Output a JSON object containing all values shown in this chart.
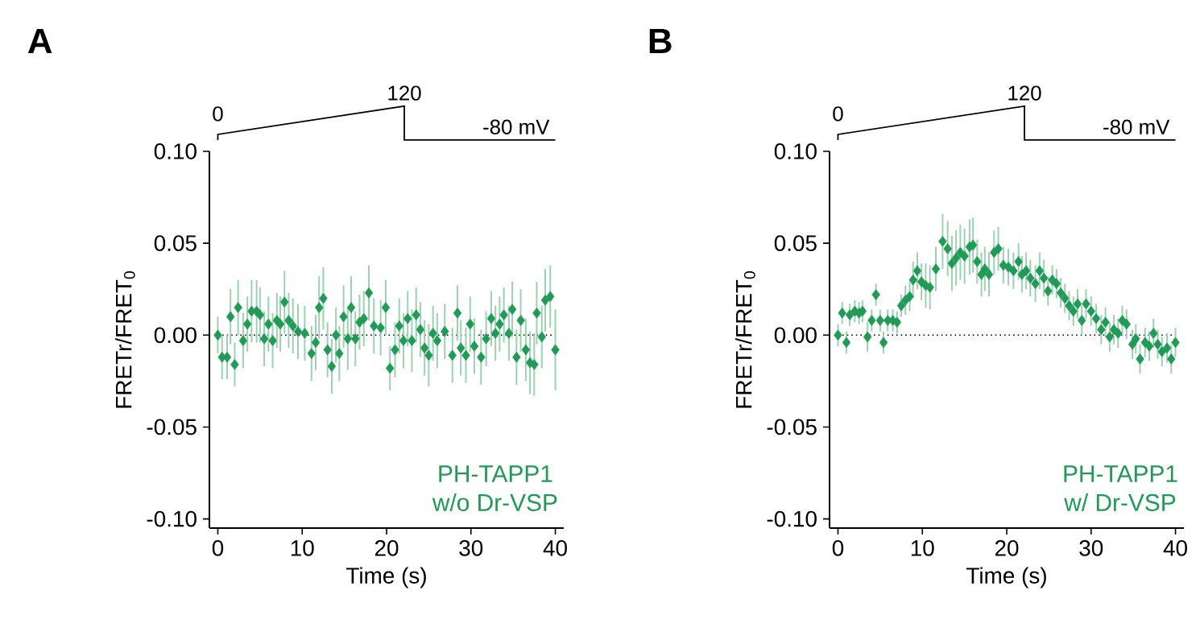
{
  "chart_data": [
    {
      "type": "scatter",
      "title": "A",
      "xlabel": "Time (s)",
      "ylabel": "FRETr/FRET$_{0}$",
      "color": "#1f9b55",
      "marker": "diamond",
      "xlim": [
        -1,
        41
      ],
      "ylim": [
        -0.105,
        0.1
      ],
      "xticks": [
        0,
        10,
        20,
        30,
        40
      ],
      "yticks": [
        {
          "value": -0.1,
          "label": "-0.10"
        },
        {
          "value": -0.05,
          "label": "-0.05"
        },
        {
          "value": 0,
          "label": "0.00"
        },
        {
          "value": 0.05,
          "label": "0.05"
        },
        {
          "value": 0.1,
          "label": "0.10"
        }
      ],
      "ref_lines": [
        {
          "axis": "y",
          "value": 0,
          "line_style": "dotted",
          "color": "#000000"
        }
      ],
      "annotations": [
        "0",
        "120",
        "-80 mV",
        "PH-TAPP1",
        "w/o Dr-VSP"
      ],
      "x": [
        0,
        0.5,
        1.1,
        1.5,
        2.0,
        2.4,
        3.0,
        3.5,
        4.0,
        4.6,
        5.0,
        5.5,
        6.0,
        6.5,
        7.0,
        7.4,
        7.9,
        8.4,
        8.9,
        9.5,
        10.3,
        11.1,
        11.6,
        12.0,
        12.5,
        13.0,
        13.5,
        14.0,
        14.4,
        14.9,
        15.4,
        15.8,
        16.3,
        16.8,
        17.3,
        17.9,
        18.5,
        19.3,
        19.9,
        20.4,
        21.0,
        21.5,
        22.0,
        22.5,
        23.0,
        23.5,
        24.0,
        24.5,
        25.0,
        25.5,
        26.0,
        26.9,
        27.8,
        28.4,
        28.8,
        29.4,
        29.9,
        30.4,
        31.2,
        31.8,
        32.4,
        32.9,
        33.4,
        33.9,
        34.5,
        34.9,
        35.4,
        35.9,
        36.5,
        37.0,
        37.5,
        37.8,
        38.4,
        38.8,
        39.4,
        40.0
      ],
      "values": [
        0,
        -0.012,
        -0.012,
        0.01,
        -0.016,
        0.015,
        -0.003,
        0.006,
        0.013,
        0.013,
        0.011,
        -0.002,
        0.006,
        -0.003,
        0.008,
        0.006,
        0.018,
        0.008,
        0.005,
        0.002,
        0.001,
        -0.01,
        -0.004,
        0.015,
        0.02,
        -0.008,
        -0.017,
        0.0,
        -0.01,
        0.01,
        -0.002,
        0.015,
        -0.002,
        0.007,
        0.009,
        0.023,
        0.005,
        0.004,
        0.015,
        -0.018,
        -0.008,
        0.005,
        -0.003,
        0.009,
        -0.003,
        0.011,
        0.003,
        -0.007,
        -0.011,
        0.001,
        -0.003,
        0.002,
        -0.011,
        0.012,
        -0.007,
        -0.011,
        0.006,
        -0.006,
        -0.012,
        -0.002,
        0.009,
        0.001,
        0.006,
        0.011,
        0.001,
        0.014,
        -0.012,
        0.008,
        -0.008,
        -0.015,
        -0.016,
        0.012,
        -0.001,
        0.019,
        0.021,
        -0.008
      ],
      "errors": [
        0.01,
        0.012,
        0.012,
        0.015,
        0.012,
        0.015,
        0.015,
        0.015,
        0.017,
        0.017,
        0.015,
        0.015,
        0.015,
        0.015,
        0.015,
        0.015,
        0.017,
        0.015,
        0.015,
        0.015,
        0.015,
        0.015,
        0.015,
        0.017,
        0.017,
        0.015,
        0.015,
        0.015,
        0.015,
        0.017,
        0.017,
        0.017,
        0.015,
        0.015,
        0.015,
        0.015,
        0.015,
        0.015,
        0.015,
        0.012,
        0.015,
        0.015,
        0.015,
        0.015,
        0.017,
        0.015,
        0.015,
        0.015,
        0.017,
        0.015,
        0.015,
        0.015,
        0.015,
        0.015,
        0.015,
        0.015,
        0.015,
        0.015,
        0.015,
        0.015,
        0.015,
        0.015,
        0.015,
        0.015,
        0.015,
        0.015,
        0.015,
        0.017,
        0.017,
        0.017,
        0.017,
        0.017,
        0.017,
        0.017,
        0.017,
        0.022
      ]
    },
    {
      "type": "scatter",
      "title": "B",
      "xlabel": "Time (s)",
      "ylabel": "FRETr/FRET$_{0}$",
      "color": "#1f9b55",
      "marker": "diamond",
      "xlim": [
        -1,
        41
      ],
      "ylim": [
        -0.105,
        0.1
      ],
      "xticks": [
        0,
        10,
        20,
        30,
        40
      ],
      "yticks": [
        {
          "value": -0.1,
          "label": "-0.10"
        },
        {
          "value": -0.05,
          "label": "-0.05"
        },
        {
          "value": 0,
          "label": "0.00"
        },
        {
          "value": 0.05,
          "label": "0.05"
        },
        {
          "value": 0.1,
          "label": "0.10"
        }
      ],
      "ref_lines": [
        {
          "axis": "y",
          "value": 0,
          "line_style": "dotted",
          "color": "#000000"
        }
      ],
      "annotations": [
        "0",
        "120",
        "-80 mV",
        "PH-TAPP1",
        "w/ Dr-VSP"
      ],
      "x": [
        0,
        0.5,
        1.0,
        1.4,
        2.0,
        2.5,
        2.9,
        3.5,
        4.0,
        4.5,
        5.0,
        5.4,
        5.9,
        6.5,
        7.0,
        7.5,
        8.0,
        8.5,
        8.9,
        9.4,
        9.9,
        10.4,
        10.9,
        11.6,
        12.4,
        13.0,
        13.5,
        14.0,
        14.5,
        15.0,
        15.6,
        16.0,
        16.5,
        17.0,
        17.4,
        17.9,
        18.5,
        19.0,
        19.6,
        20.2,
        20.8,
        21.4,
        21.8,
        22.3,
        22.8,
        23.4,
        23.9,
        24.4,
        24.9,
        25.4,
        25.9,
        26.4,
        26.9,
        27.4,
        27.9,
        28.4,
        28.9,
        29.4,
        30.0,
        30.6,
        31.2,
        31.7,
        32.2,
        32.7,
        33.2,
        33.7,
        34.2,
        34.9,
        35.3,
        35.8,
        36.4,
        36.9,
        37.4,
        37.9,
        38.4,
        39.0,
        39.5,
        40.0
      ],
      "values": [
        0.0,
        0.012,
        -0.004,
        0.011,
        0.013,
        0.012,
        0.013,
        -0.001,
        0.008,
        0.022,
        0.008,
        -0.004,
        0.008,
        0.008,
        0.007,
        0.016,
        0.019,
        0.021,
        0.03,
        0.035,
        0.029,
        0.027,
        0.026,
        0.036,
        0.051,
        0.047,
        0.039,
        0.042,
        0.045,
        0.043,
        0.048,
        0.049,
        0.04,
        0.033,
        0.036,
        0.033,
        0.045,
        0.047,
        0.038,
        0.037,
        0.035,
        0.04,
        0.033,
        0.035,
        0.031,
        0.028,
        0.035,
        0.031,
        0.024,
        0.03,
        0.028,
        0.023,
        0.02,
        0.016,
        0.013,
        0.017,
        0.008,
        0.017,
        0.013,
        0.009,
        0.003,
        0.007,
        -0.001,
        0.003,
        0.001,
        0.008,
        0.006,
        -0.005,
        -0.002,
        -0.013,
        -0.004,
        -0.006,
        0.001,
        -0.005,
        -0.009,
        -0.007,
        -0.013,
        -0.004
      ],
      "errors": [
        0.006,
        0.006,
        0.006,
        0.006,
        0.006,
        0.006,
        0.006,
        0.008,
        0.006,
        0.006,
        0.006,
        0.006,
        0.006,
        0.006,
        0.006,
        0.006,
        0.008,
        0.008,
        0.01,
        0.01,
        0.01,
        0.012,
        0.012,
        0.012,
        0.015,
        0.015,
        0.015,
        0.015,
        0.015,
        0.015,
        0.015,
        0.015,
        0.012,
        0.012,
        0.012,
        0.012,
        0.012,
        0.012,
        0.01,
        0.01,
        0.01,
        0.01,
        0.01,
        0.01,
        0.01,
        0.01,
        0.01,
        0.01,
        0.008,
        0.008,
        0.008,
        0.008,
        0.008,
        0.008,
        0.008,
        0.008,
        0.008,
        0.008,
        0.008,
        0.008,
        0.008,
        0.008,
        0.008,
        0.008,
        0.008,
        0.008,
        0.008,
        0.008,
        0.008,
        0.008,
        0.008,
        0.008,
        0.008,
        0.008,
        0.008,
        0.008,
        0.008,
        0.008
      ]
    }
  ]
}
